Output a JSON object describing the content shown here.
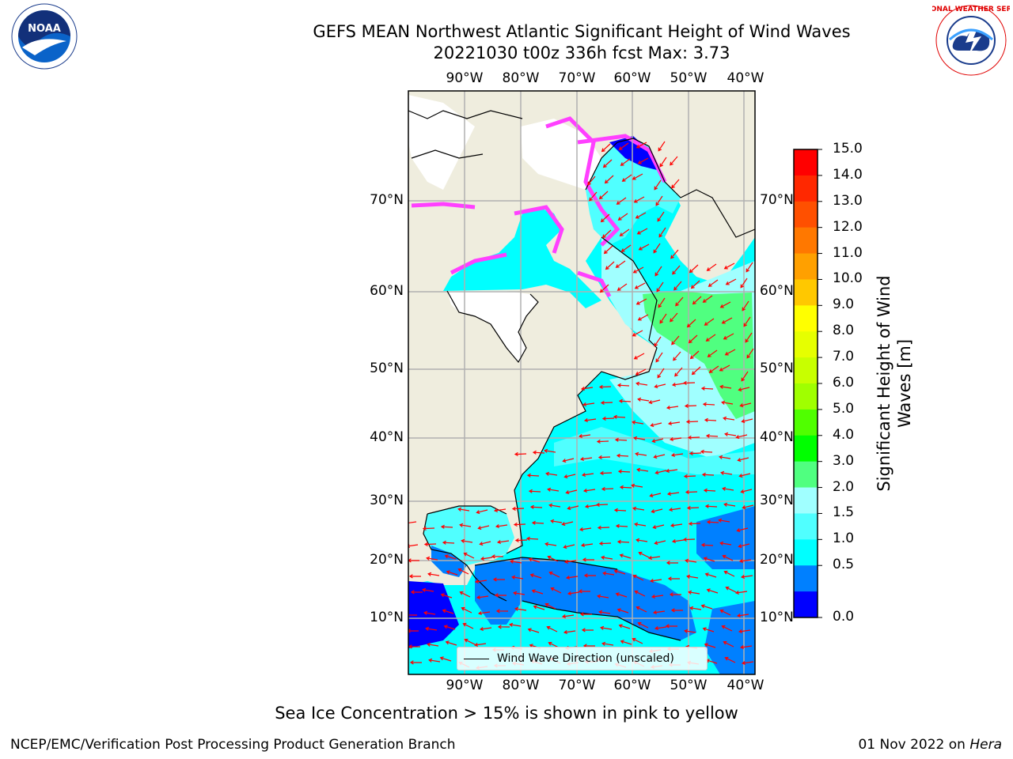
{
  "header": {
    "title_line1": "GEFS MEAN Northwest Atlantic Significant Height of Wind Waves",
    "title_line2": "20221030 t00z 336h fcst   Max: 3.73"
  },
  "logos": {
    "noaa_text": "NOAA",
    "nws_text": "NATIONAL WEATHER SERVICE"
  },
  "map": {
    "top_lon_labels": [
      "90°W",
      "80°W",
      "70°W",
      "60°W",
      "50°W",
      "40°W"
    ],
    "bottom_lon_labels": [
      "90°W",
      "80°W",
      "70°W",
      "60°W",
      "50°W",
      "40°W"
    ],
    "left_lat_labels": [
      "70°N",
      "60°N",
      "50°N",
      "40°N",
      "30°N",
      "20°N",
      "10°N"
    ],
    "right_lat_labels": [
      "70°N",
      "60°N",
      "50°N",
      "40°N",
      "30°N",
      "20°N",
      "10°N"
    ],
    "legend_label": "Wind Wave Direction (unscaled)",
    "colors": {
      "land": "#efedde",
      "water_low": "#0000ff",
      "water_mid": "#0080ff",
      "water_cyan": "#00ffff",
      "water_light": "#50ffff",
      "water_pale": "#a0ffff",
      "water_green": "#50ff80",
      "arrow": "#ff0000",
      "ice_pink": "#ff40ff",
      "grid": "#b0b0b0"
    }
  },
  "colorbar": {
    "title_line1": "Significant Height of Wind",
    "title_line2": "Waves [m]",
    "tick_labels": [
      "15.0",
      "14.0",
      "13.0",
      "12.0",
      "11.0",
      "10.0",
      "9.0",
      "8.0",
      "7.0",
      "6.0",
      "5.0",
      "4.0",
      "3.0",
      "2.0",
      "1.5",
      "1.0",
      "0.5",
      "0.0"
    ],
    "segment_colors": [
      "#ff0000",
      "#ff2800",
      "#ff5000",
      "#ff7800",
      "#ffa000",
      "#ffc800",
      "#ffff00",
      "#e6ff00",
      "#c8ff00",
      "#a0ff00",
      "#50ff00",
      "#00ff00",
      "#50ff80",
      "#a0ffff",
      "#50ffff",
      "#00ffff",
      "#0080ff",
      "#0000ff"
    ]
  },
  "footer": {
    "note": "Sea Ice Concentration > 15% is shown in pink to yellow",
    "credit": "NCEP/EMC/Verification Post Processing Product Generation Branch",
    "date": "01 Nov 2022 on",
    "machine": "Hera"
  }
}
